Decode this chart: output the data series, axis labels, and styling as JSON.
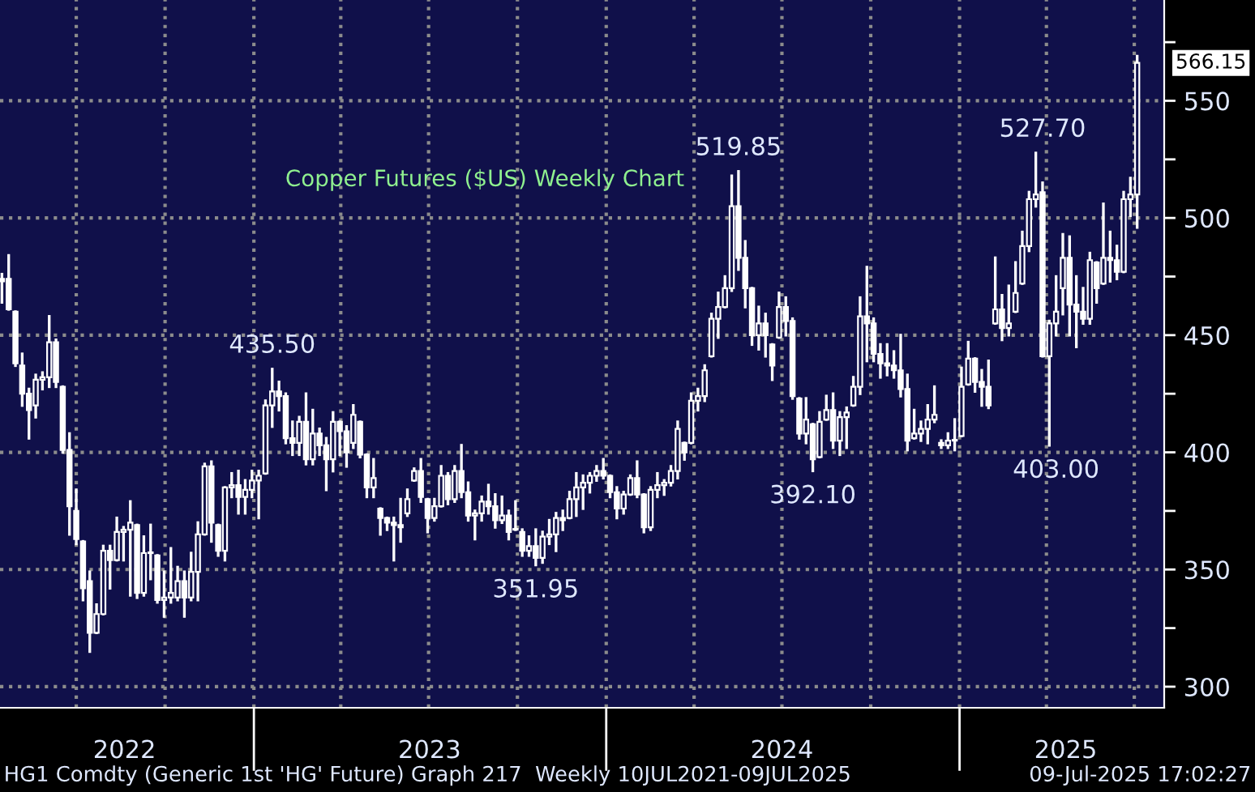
{
  "chart_data": {
    "type": "candlestick",
    "title": "Copper Futures ($US) Weekly Chart",
    "x": [
      "2022-04-15",
      "2022-04-22",
      "2022-04-29",
      "2022-05-06",
      "2022-05-13",
      "2022-05-20",
      "2022-05-27",
      "2022-06-03",
      "2022-06-10",
      "2022-06-17",
      "2022-06-24",
      "2022-07-01",
      "2022-07-08",
      "2022-07-15",
      "2022-07-22",
      "2022-07-29",
      "2022-08-05",
      "2022-08-12",
      "2022-08-19",
      "2022-08-26",
      "2022-09-02",
      "2022-09-09",
      "2022-09-16",
      "2022-09-23",
      "2022-09-30",
      "2022-10-07",
      "2022-10-14",
      "2022-10-21",
      "2022-10-28",
      "2022-11-04",
      "2022-11-11",
      "2022-11-18",
      "2022-11-25",
      "2022-12-02",
      "2022-12-09",
      "2022-12-16",
      "2022-12-23",
      "2022-12-30",
      "2023-01-06",
      "2023-01-13",
      "2023-01-20",
      "2023-01-27",
      "2023-02-03",
      "2023-02-10",
      "2023-02-17",
      "2023-02-24",
      "2023-03-03",
      "2023-03-10",
      "2023-03-17",
      "2023-03-24",
      "2023-03-31",
      "2023-04-07",
      "2023-04-14",
      "2023-04-21",
      "2023-04-28",
      "2023-05-05",
      "2023-05-12",
      "2023-05-19",
      "2023-05-26",
      "2023-06-02",
      "2023-06-09",
      "2023-06-16",
      "2023-06-23",
      "2023-06-30",
      "2023-07-07",
      "2023-07-14",
      "2023-07-21",
      "2023-07-28",
      "2023-08-04",
      "2023-08-11",
      "2023-08-18",
      "2023-08-25",
      "2023-09-01",
      "2023-09-08",
      "2023-09-15",
      "2023-09-22",
      "2023-09-29",
      "2023-10-06",
      "2023-10-13",
      "2023-10-20",
      "2023-10-27",
      "2023-11-03",
      "2023-11-10",
      "2023-11-17",
      "2023-11-24",
      "2023-12-01",
      "2023-12-08",
      "2023-12-15",
      "2023-12-22",
      "2023-12-29",
      "2024-01-05",
      "2024-01-12",
      "2024-01-19",
      "2024-01-26",
      "2024-02-02",
      "2024-02-09",
      "2024-02-16",
      "2024-02-23",
      "2024-03-01",
      "2024-03-08",
      "2024-03-15",
      "2024-03-22",
      "2024-03-29",
      "2024-04-05",
      "2024-04-12",
      "2024-04-19",
      "2024-04-26",
      "2024-05-03",
      "2024-05-10",
      "2024-05-17",
      "2024-05-24",
      "2024-05-31",
      "2024-06-07",
      "2024-06-14",
      "2024-06-21",
      "2024-06-28",
      "2024-07-05",
      "2024-07-12",
      "2024-07-19",
      "2024-07-26",
      "2024-08-02",
      "2024-08-09",
      "2024-08-16",
      "2024-08-23",
      "2024-08-30",
      "2024-09-06",
      "2024-09-13",
      "2024-09-20",
      "2024-09-27",
      "2024-10-04",
      "2024-10-11",
      "2024-10-18",
      "2024-10-25",
      "2024-11-01",
      "2024-11-08",
      "2024-11-15",
      "2024-11-22",
      "2024-11-29",
      "2024-12-06",
      "2024-12-13",
      "2024-12-20",
      "2024-12-27",
      "2025-01-03",
      "2025-01-10",
      "2025-01-17",
      "2025-01-24",
      "2025-01-31",
      "2025-02-07",
      "2025-02-14",
      "2025-02-21",
      "2025-02-28",
      "2025-03-07",
      "2025-03-14",
      "2025-03-21",
      "2025-03-28",
      "2025-04-04",
      "2025-04-11",
      "2025-04-18",
      "2025-04-25",
      "2025-05-02",
      "2025-05-09",
      "2025-05-16",
      "2025-05-23",
      "2025-05-30",
      "2025-06-06",
      "2025-06-13",
      "2025-06-20",
      "2025-06-27",
      "2025-07-04"
    ],
    "ohlc": [
      [
        474,
        476,
        464,
        473
      ],
      [
        474,
        484,
        461,
        461
      ],
      [
        460,
        460,
        437,
        438
      ],
      [
        437,
        442,
        420,
        425
      ],
      [
        425,
        427,
        406,
        418
      ],
      [
        420,
        433,
        415,
        431
      ],
      [
        431,
        434,
        427,
        432
      ],
      [
        432,
        458,
        428,
        447
      ],
      [
        447,
        448,
        428,
        430
      ],
      [
        428,
        428,
        400,
        401
      ],
      [
        401,
        408,
        365,
        377
      ],
      [
        375,
        384,
        361,
        363
      ],
      [
        362,
        362,
        337,
        342
      ],
      [
        345,
        349,
        315,
        323
      ],
      [
        323,
        335,
        323,
        331
      ],
      [
        331,
        360,
        331,
        358
      ],
      [
        358,
        360,
        342,
        354
      ],
      [
        354,
        372,
        354,
        366
      ],
      [
        366,
        368,
        354,
        367
      ],
      [
        367,
        379,
        339,
        370
      ],
      [
        369,
        369,
        338,
        340
      ],
      [
        340,
        364,
        339,
        357
      ],
      [
        357,
        369,
        346,
        357
      ],
      [
        356,
        356,
        336,
        337
      ],
      [
        337,
        349,
        330,
        338
      ],
      [
        338,
        359,
        336,
        340
      ],
      [
        338,
        351,
        337,
        345
      ],
      [
        345,
        349,
        330,
        338
      ],
      [
        338,
        357,
        337,
        349
      ],
      [
        349,
        370,
        337,
        365
      ],
      [
        365,
        395,
        365,
        394
      ],
      [
        394,
        396,
        362,
        370
      ],
      [
        369,
        369,
        356,
        358
      ],
      [
        358,
        385,
        354,
        385
      ],
      [
        385,
        391,
        381,
        386
      ],
      [
        386,
        392,
        374,
        381
      ],
      [
        381,
        388,
        374,
        384
      ],
      [
        384,
        392,
        381,
        388
      ],
      [
        388,
        392,
        372,
        390
      ],
      [
        391,
        422,
        391,
        420
      ],
      [
        420,
        435.5,
        411,
        426
      ],
      [
        426,
        430,
        418,
        424
      ],
      [
        424,
        425,
        404,
        406
      ],
      [
        406,
        413,
        399,
        404
      ],
      [
        404,
        415,
        399,
        413
      ],
      [
        413,
        425,
        395,
        397
      ],
      [
        397,
        418,
        395,
        408
      ],
      [
        408,
        410,
        399,
        403
      ],
      [
        403,
        406,
        384,
        397
      ],
      [
        397,
        417,
        392,
        413
      ],
      [
        413,
        413,
        399,
        409
      ],
      [
        409,
        411,
        394,
        400
      ],
      [
        404,
        420,
        402,
        416
      ],
      [
        413,
        413,
        398,
        399
      ],
      [
        399,
        399,
        381,
        385
      ],
      [
        385,
        397,
        381,
        389
      ],
      [
        376,
        376,
        365,
        372
      ],
      [
        372,
        372,
        367,
        370
      ],
      [
        370,
        372,
        354,
        369
      ],
      [
        369,
        380,
        362,
        368
      ],
      [
        374,
        384,
        373,
        380
      ],
      [
        388,
        393,
        388,
        392
      ],
      [
        392,
        397,
        379,
        381
      ],
      [
        380,
        380,
        366,
        372
      ],
      [
        372,
        380,
        371,
        377
      ],
      [
        377,
        394,
        377,
        390
      ],
      [
        390,
        391,
        378,
        380
      ],
      [
        380,
        394,
        379,
        392
      ],
      [
        392,
        403,
        381,
        383
      ],
      [
        383,
        387,
        371,
        373
      ],
      [
        373,
        375,
        363,
        374
      ],
      [
        374,
        381,
        371,
        379
      ],
      [
        379,
        386,
        374,
        377
      ],
      [
        377,
        382,
        368,
        371
      ],
      [
        371,
        381,
        370,
        373
      ],
      [
        373,
        375,
        363,
        366
      ],
      [
        367,
        379,
        367,
        367
      ],
      [
        366,
        367,
        356,
        358
      ],
      [
        358,
        364,
        356,
        360
      ],
      [
        360,
        367,
        351.95,
        355
      ],
      [
        355,
        366,
        353,
        364
      ],
      [
        364,
        371,
        361,
        365
      ],
      [
        365,
        374,
        358,
        372
      ],
      [
        372,
        375,
        367,
        371
      ],
      [
        372,
        383,
        372,
        380
      ],
      [
        380,
        391,
        373,
        385
      ],
      [
        385,
        390,
        376,
        387
      ],
      [
        387,
        391,
        383,
        390
      ],
      [
        390,
        394,
        388,
        392
      ],
      [
        392,
        397,
        389,
        390
      ],
      [
        390,
        390,
        381,
        383
      ],
      [
        383,
        385,
        372,
        376
      ],
      [
        376,
        383,
        374,
        382
      ],
      [
        382,
        390,
        382,
        389
      ],
      [
        389,
        396,
        381,
        382
      ],
      [
        382,
        382,
        366,
        368
      ],
      [
        368,
        385,
        367,
        384
      ],
      [
        384,
        391,
        381,
        386
      ],
      [
        386,
        388,
        382,
        387
      ],
      [
        387,
        394,
        386,
        392
      ],
      [
        392,
        413,
        389,
        410
      ],
      [
        404,
        404,
        397,
        400
      ],
      [
        404,
        425,
        404,
        422
      ],
      [
        422,
        427,
        418,
        424
      ],
      [
        424,
        437,
        422,
        435
      ],
      [
        441,
        459,
        441,
        457
      ],
      [
        457,
        468,
        449,
        462
      ],
      [
        462,
        475,
        462,
        470
      ],
      [
        470,
        518,
        469,
        505
      ],
      [
        505,
        519.85,
        478,
        483
      ],
      [
        483,
        490,
        462,
        470
      ],
      [
        470,
        470,
        446,
        450
      ],
      [
        450,
        462,
        444,
        455
      ],
      [
        455,
        459,
        441,
        450
      ],
      [
        446,
        446,
        431,
        437
      ],
      [
        449,
        468,
        449,
        462
      ],
      [
        462,
        466,
        450,
        456
      ],
      [
        456,
        457,
        423,
        424
      ],
      [
        423,
        423,
        406,
        408
      ],
      [
        408,
        423,
        404,
        414
      ],
      [
        412,
        412,
        392.1,
        397
      ],
      [
        398,
        417,
        398,
        413
      ],
      [
        414,
        424,
        414,
        418
      ],
      [
        418,
        425,
        402,
        405
      ],
      [
        405,
        417,
        399,
        415
      ],
      [
        415,
        419,
        402,
        417
      ],
      [
        420,
        432,
        420,
        428
      ],
      [
        428,
        466,
        425,
        458
      ],
      [
        458,
        479,
        439,
        455
      ],
      [
        455,
        457,
        439,
        442
      ],
      [
        442,
        446,
        432,
        438
      ],
      [
        438,
        446,
        433,
        437
      ],
      [
        437,
        443,
        432,
        435
      ],
      [
        435,
        450,
        424,
        427
      ],
      [
        427,
        433,
        401,
        405
      ],
      [
        406,
        418,
        406,
        408
      ],
      [
        408,
        413,
        405,
        410
      ],
      [
        410,
        420,
        404,
        414
      ],
      [
        414,
        428,
        413,
        416
      ],
      [
        404,
        405,
        402,
        403
      ],
      [
        403,
        408,
        402,
        405
      ],
      [
        405,
        414,
        401,
        405
      ],
      [
        407,
        436,
        407,
        428
      ],
      [
        429,
        447,
        429,
        440
      ],
      [
        440,
        440,
        426,
        430
      ],
      [
        430,
        435,
        420,
        428
      ],
      [
        428,
        439,
        419,
        420
      ],
      [
        455,
        483,
        455,
        461
      ],
      [
        461,
        467,
        448,
        453
      ],
      [
        453,
        471,
        450,
        455
      ],
      [
        460,
        481,
        460,
        468
      ],
      [
        472,
        494,
        472,
        488
      ],
      [
        488,
        511,
        486,
        508
      ],
      [
        508,
        527.7,
        505,
        510
      ],
      [
        511,
        515,
        441,
        441
      ],
      [
        441,
        456,
        403,
        455
      ],
      [
        455,
        475,
        450,
        460
      ],
      [
        470,
        493,
        459,
        483
      ],
      [
        483,
        492,
        450,
        463
      ],
      [
        463,
        475,
        445,
        460
      ],
      [
        460,
        470,
        455,
        457
      ],
      [
        457,
        485,
        455,
        482
      ],
      [
        481,
        481,
        464,
        470
      ],
      [
        472,
        506,
        472,
        483
      ],
      [
        483,
        494,
        473,
        482
      ],
      [
        482,
        488,
        474,
        477
      ],
      [
        477,
        511,
        477,
        508
      ],
      [
        508,
        517,
        501,
        510
      ],
      [
        510,
        569,
        496,
        566.15
      ]
    ],
    "color": "#ffffff",
    "xlim": [
      "2022-04-13",
      "2025-08-01"
    ],
    "xticks": [
      {
        "value": "2022-08-20",
        "label": "2022"
      },
      {
        "value": "2023-01-01",
        "label": null
      },
      {
        "value": "2023-07-02",
        "label": "2023"
      },
      {
        "value": "2024-01-01",
        "label": null
      },
      {
        "value": "2024-07-01",
        "label": "2024"
      },
      {
        "value": "2025-01-01",
        "label": null
      },
      {
        "value": "2025-04-21",
        "label": "2025"
      }
    ],
    "ylim": [
      291,
      593
    ],
    "yticks": [
      300,
      {
        "value": 325,
        "label": null
      },
      350,
      {
        "value": 375,
        "label": null
      },
      400,
      {
        "value": 425,
        "label": null
      },
      450,
      {
        "value": 475,
        "label": null
      },
      500,
      {
        "value": 525,
        "label": null
      },
      550,
      {
        "value": 575,
        "label": null
      }
    ],
    "grid": "y",
    "ref_lines": [
      {
        "axis": "x",
        "value": "2022-07-01",
        "color": "#8c8c8c",
        "line_style": "dotted"
      },
      {
        "axis": "x",
        "value": "2022-10-01",
        "color": "#8c8c8c",
        "line_style": "dotted"
      },
      {
        "axis": "x",
        "value": "2023-01-01",
        "color": "#8c8c8c",
        "line_style": "dotted"
      },
      {
        "axis": "x",
        "value": "2023-04-01",
        "color": "#8c8c8c",
        "line_style": "dotted"
      },
      {
        "axis": "x",
        "value": "2023-07-01",
        "color": "#8c8c8c",
        "line_style": "dotted"
      },
      {
        "axis": "x",
        "value": "2023-10-01",
        "color": "#8c8c8c",
        "line_style": "dotted"
      },
      {
        "axis": "x",
        "value": "2024-01-01",
        "color": "#8c8c8c",
        "line_style": "dotted"
      },
      {
        "axis": "x",
        "value": "2024-04-01",
        "color": "#8c8c8c",
        "line_style": "dotted"
      },
      {
        "axis": "x",
        "value": "2024-07-01",
        "color": "#8c8c8c",
        "line_style": "dotted"
      },
      {
        "axis": "x",
        "value": "2024-10-01",
        "color": "#8c8c8c",
        "line_style": "dotted"
      },
      {
        "axis": "x",
        "value": "2025-01-01",
        "color": "#8c8c8c",
        "line_style": "dotted"
      },
      {
        "axis": "x",
        "value": "2025-04-01",
        "color": "#8c8c8c",
        "line_style": "dotted"
      },
      {
        "axis": "x",
        "value": "2025-07-01",
        "color": "#8c8c8c",
        "line_style": "dotted"
      }
    ],
    "annotations": [
      {
        "text": "435.50",
        "x": "2023-01-20",
        "y": 435.5
      },
      {
        "text": "351.95",
        "x": "2023-10-20",
        "y": 351.95
      },
      {
        "text": "519.85",
        "x": "2024-05-17",
        "y": 519.85
      },
      {
        "text": "392.10",
        "x": "2024-08-02",
        "y": 392.1
      },
      {
        "text": "527.70",
        "x": "2025-03-28",
        "y": 527.7
      },
      {
        "text": "403.00",
        "x": "2025-04-11",
        "y": 403.0
      },
      {
        "text": "566.15",
        "x": "2025-07-04",
        "y": 566.15
      },
      "HG1 Comdty (Generic 1st 'HG' Future) Graph 217  Weekly 10JUL2021-09JUL2025",
      "09-Jul-2025 17:02:27"
    ]
  }
}
